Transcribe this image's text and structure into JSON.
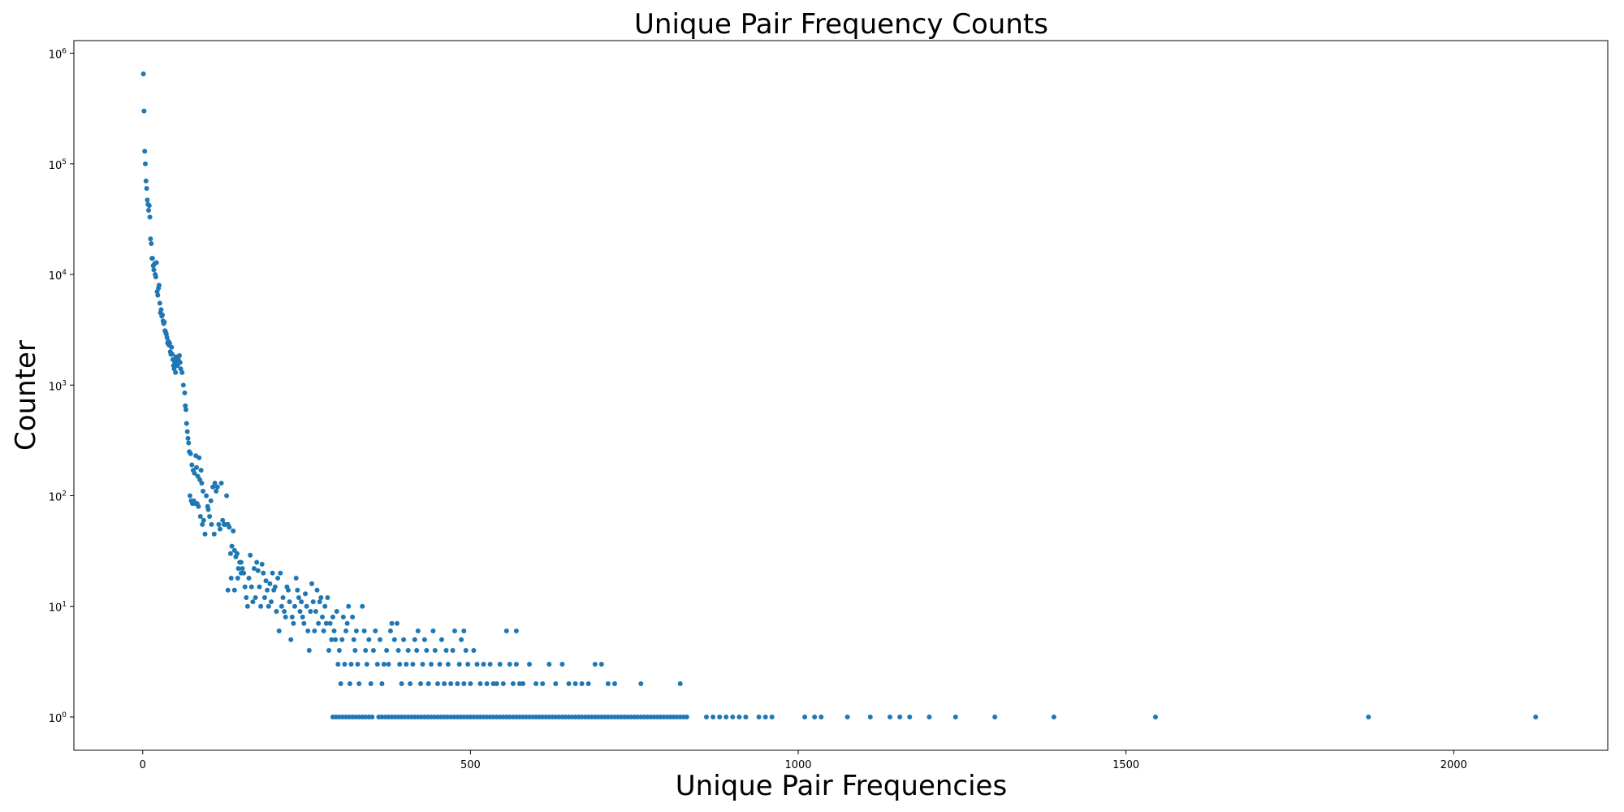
{
  "chart_data": {
    "type": "scatter",
    "title": "Unique Pair Frequency Counts",
    "xlabel": "Unique Pair Frequencies",
    "ylabel": "Counter",
    "xlim": [
      -105,
      2235
    ],
    "ylim": [
      0.5,
      1300000
    ],
    "yscale": "log",
    "xticks": [
      0,
      500,
      1000,
      1500,
      2000
    ],
    "yticks": [
      {
        "value": 1,
        "base": "10",
        "exp": "0"
      },
      {
        "value": 10,
        "base": "10",
        "exp": "1"
      },
      {
        "value": 100,
        "base": "10",
        "exp": "2"
      },
      {
        "value": 1000,
        "base": "10",
        "exp": "3"
      },
      {
        "value": 10000,
        "base": "10",
        "exp": "4"
      },
      {
        "value": 100000,
        "base": "10",
        "exp": "5"
      },
      {
        "value": 1000000,
        "base": "10",
        "exp": "6"
      }
    ],
    "grid": false,
    "marker_color": "#1f77b4",
    "points": [
      [
        1,
        650000
      ],
      [
        2,
        300000
      ],
      [
        3,
        130000
      ],
      [
        4,
        100000
      ],
      [
        5,
        70000
      ],
      [
        6,
        60000
      ],
      [
        7,
        47000
      ],
      [
        8,
        43000
      ],
      [
        9,
        38000
      ],
      [
        10,
        42000
      ],
      [
        11,
        33000
      ],
      [
        12,
        21000
      ],
      [
        13,
        19000
      ],
      [
        14,
        14000
      ],
      [
        15,
        14000
      ],
      [
        16,
        12000
      ],
      [
        17,
        11000
      ],
      [
        18,
        12500
      ],
      [
        19,
        10000
      ],
      [
        20,
        9500
      ],
      [
        21,
        12800
      ],
      [
        22,
        7000
      ],
      [
        23,
        6500
      ],
      [
        24,
        7500
      ],
      [
        25,
        8000
      ],
      [
        26,
        5500
      ],
      [
        27,
        4500
      ],
      [
        28,
        4800
      ],
      [
        29,
        4200
      ],
      [
        30,
        4300
      ],
      [
        31,
        3800
      ],
      [
        32,
        3600
      ],
      [
        33,
        3700
      ],
      [
        34,
        3100
      ],
      [
        35,
        3000
      ],
      [
        36,
        2900
      ],
      [
        37,
        2700
      ],
      [
        38,
        2400
      ],
      [
        39,
        2500
      ],
      [
        40,
        2300
      ],
      [
        41,
        2400
      ],
      [
        42,
        2000
      ],
      [
        43,
        1900
      ],
      [
        44,
        2200
      ],
      [
        45,
        1900
      ],
      [
        46,
        1700
      ],
      [
        47,
        1500
      ],
      [
        48,
        1400
      ],
      [
        49,
        1600
      ],
      [
        50,
        1300
      ],
      [
        51,
        1800
      ],
      [
        52,
        1700
      ],
      [
        53,
        1500
      ],
      [
        54,
        1750
      ],
      [
        55,
        1650
      ],
      [
        56,
        1850
      ],
      [
        57,
        1600
      ],
      [
        58,
        1400
      ],
      [
        60,
        1300
      ],
      [
        62,
        1000
      ],
      [
        64,
        850
      ],
      [
        65,
        650
      ],
      [
        66,
        600
      ],
      [
        67,
        450
      ],
      [
        68,
        380
      ],
      [
        69,
        330
      ],
      [
        70,
        300
      ],
      [
        71,
        250
      ],
      [
        73,
        240
      ],
      [
        75,
        190
      ],
      [
        77,
        170
      ],
      [
        79,
        160
      ],
      [
        81,
        230
      ],
      [
        82,
        180
      ],
      [
        84,
        150
      ],
      [
        86,
        220
      ],
      [
        87,
        140
      ],
      [
        89,
        170
      ],
      [
        90,
        130
      ],
      [
        92,
        110
      ],
      [
        72,
        100
      ],
      [
        74,
        90
      ],
      [
        76,
        85
      ],
      [
        78,
        90
      ],
      [
        80,
        85
      ],
      [
        83,
        85
      ],
      [
        85,
        80
      ],
      [
        88,
        65
      ],
      [
        91,
        55
      ],
      [
        93,
        60
      ],
      [
        95,
        45
      ],
      [
        97,
        100
      ],
      [
        99,
        80
      ],
      [
        100,
        75
      ],
      [
        102,
        65
      ],
      [
        104,
        90
      ],
      [
        105,
        55
      ],
      [
        107,
        120
      ],
      [
        109,
        45
      ],
      [
        110,
        130
      ],
      [
        112,
        110
      ],
      [
        114,
        120
      ],
      [
        116,
        55
      ],
      [
        118,
        50
      ],
      [
        120,
        130
      ],
      [
        122,
        60
      ],
      [
        124,
        55
      ],
      [
        126,
        55
      ],
      [
        128,
        100
      ],
      [
        130,
        55
      ],
      [
        132,
        52
      ],
      [
        134,
        30
      ],
      [
        136,
        35
      ],
      [
        138,
        48
      ],
      [
        140,
        32
      ],
      [
        142,
        28
      ],
      [
        144,
        30
      ],
      [
        146,
        22
      ],
      [
        148,
        25
      ],
      [
        150,
        20
      ],
      [
        130,
        14
      ],
      [
        135,
        18
      ],
      [
        140,
        14
      ],
      [
        145,
        18
      ],
      [
        150,
        25
      ],
      [
        152,
        22
      ],
      [
        154,
        20
      ],
      [
        156,
        15
      ],
      [
        158,
        12
      ],
      [
        160,
        10
      ],
      [
        162,
        18
      ],
      [
        164,
        29
      ],
      [
        166,
        15
      ],
      [
        168,
        11
      ],
      [
        170,
        22
      ],
      [
        172,
        12
      ],
      [
        174,
        25
      ],
      [
        176,
        21
      ],
      [
        178,
        15
      ],
      [
        180,
        10
      ],
      [
        182,
        24
      ],
      [
        184,
        20
      ],
      [
        186,
        12
      ],
      [
        188,
        17
      ],
      [
        190,
        14
      ],
      [
        192,
        10
      ],
      [
        194,
        16
      ],
      [
        196,
        11
      ],
      [
        198,
        20
      ],
      [
        200,
        14
      ],
      [
        202,
        15
      ],
      [
        204,
        9
      ],
      [
        206,
        18
      ],
      [
        208,
        6
      ],
      [
        210,
        20
      ],
      [
        212,
        10
      ],
      [
        214,
        12
      ],
      [
        216,
        9
      ],
      [
        218,
        8
      ],
      [
        220,
        15
      ],
      [
        222,
        14
      ],
      [
        224,
        11
      ],
      [
        226,
        5
      ],
      [
        228,
        8
      ],
      [
        230,
        7
      ],
      [
        232,
        10
      ],
      [
        234,
        18
      ],
      [
        236,
        14
      ],
      [
        238,
        12
      ],
      [
        240,
        9
      ],
      [
        242,
        11
      ],
      [
        244,
        8
      ],
      [
        246,
        7
      ],
      [
        248,
        13
      ],
      [
        250,
        10
      ],
      [
        252,
        6
      ],
      [
        254,
        4
      ],
      [
        256,
        9
      ],
      [
        258,
        16
      ],
      [
        260,
        11
      ],
      [
        262,
        6
      ],
      [
        264,
        9
      ],
      [
        266,
        14
      ],
      [
        268,
        7
      ],
      [
        270,
        11
      ],
      [
        272,
        12
      ],
      [
        274,
        8
      ],
      [
        276,
        6
      ],
      [
        278,
        10
      ],
      [
        280,
        7
      ],
      [
        282,
        12
      ],
      [
        284,
        4
      ],
      [
        286,
        7
      ],
      [
        288,
        5
      ],
      [
        290,
        8
      ],
      [
        292,
        6
      ],
      [
        294,
        5
      ],
      [
        296,
        9
      ],
      [
        298,
        3
      ],
      [
        300,
        4
      ],
      [
        302,
        2
      ],
      [
        304,
        5
      ],
      [
        306,
        8
      ],
      [
        308,
        3
      ],
      [
        310,
        6
      ],
      [
        312,
        7
      ],
      [
        314,
        10
      ],
      [
        316,
        2
      ],
      [
        318,
        3
      ],
      [
        320,
        8
      ],
      [
        322,
        5
      ],
      [
        324,
        4
      ],
      [
        326,
        6
      ],
      [
        328,
        3
      ],
      [
        330,
        2
      ],
      [
        335,
        10
      ],
      [
        338,
        6
      ],
      [
        340,
        4
      ],
      [
        342,
        3
      ],
      [
        345,
        5
      ],
      [
        348,
        2
      ],
      [
        352,
        4
      ],
      [
        355,
        6
      ],
      [
        358,
        3
      ],
      [
        362,
        5
      ],
      [
        365,
        2
      ],
      [
        368,
        3
      ],
      [
        372,
        4
      ],
      [
        375,
        3
      ],
      [
        378,
        6
      ],
      [
        380,
        7
      ],
      [
        384,
        5
      ],
      [
        388,
        7
      ],
      [
        390,
        4
      ],
      [
        392,
        3
      ],
      [
        395,
        2
      ],
      [
        398,
        5
      ],
      [
        402,
        3
      ],
      [
        405,
        4
      ],
      [
        408,
        2
      ],
      [
        412,
        3
      ],
      [
        415,
        5
      ],
      [
        418,
        4
      ],
      [
        420,
        6
      ],
      [
        424,
        2
      ],
      [
        427,
        3
      ],
      [
        430,
        5
      ],
      [
        433,
        4
      ],
      [
        436,
        2
      ],
      [
        440,
        3
      ],
      [
        443,
        6
      ],
      [
        446,
        4
      ],
      [
        450,
        2
      ],
      [
        453,
        3
      ],
      [
        456,
        5
      ],
      [
        460,
        2
      ],
      [
        463,
        4
      ],
      [
        466,
        3
      ],
      [
        470,
        2
      ],
      [
        473,
        4
      ],
      [
        476,
        6
      ],
      [
        480,
        2
      ],
      [
        483,
        3
      ],
      [
        486,
        5
      ],
      [
        490,
        2
      ],
      [
        493,
        4
      ],
      [
        496,
        3
      ],
      [
        500,
        2
      ],
      [
        505,
        4
      ],
      [
        510,
        3
      ],
      [
        515,
        2
      ],
      [
        520,
        3
      ],
      [
        525,
        2
      ],
      [
        530,
        3
      ],
      [
        535,
        2
      ],
      [
        540,
        2
      ],
      [
        545,
        3
      ],
      [
        550,
        2
      ],
      [
        555,
        6
      ],
      [
        560,
        3
      ],
      [
        565,
        2
      ],
      [
        570,
        3
      ],
      [
        575,
        2
      ],
      [
        580,
        2
      ],
      [
        590,
        3
      ],
      [
        600,
        2
      ],
      [
        610,
        2
      ],
      [
        620,
        3
      ],
      [
        630,
        2
      ],
      [
        640,
        3
      ],
      [
        650,
        2
      ],
      [
        660,
        2
      ],
      [
        670,
        2
      ],
      [
        680,
        2
      ],
      [
        690,
        3
      ],
      [
        700,
        3
      ],
      [
        710,
        2
      ],
      [
        720,
        2
      ],
      [
        760,
        2
      ],
      [
        820,
        2
      ],
      [
        490,
        6
      ],
      [
        570,
        6
      ],
      [
        290,
        1
      ],
      [
        295,
        1
      ],
      [
        300,
        1
      ],
      [
        305,
        1
      ],
      [
        310,
        1
      ],
      [
        315,
        1
      ],
      [
        320,
        1
      ],
      [
        325,
        1
      ],
      [
        330,
        1
      ],
      [
        335,
        1
      ],
      [
        340,
        1
      ],
      [
        345,
        1
      ],
      [
        350,
        1
      ],
      [
        360,
        1
      ],
      [
        365,
        1
      ],
      [
        370,
        1
      ],
      [
        375,
        1
      ],
      [
        380,
        1
      ],
      [
        385,
        1
      ],
      [
        390,
        1
      ],
      [
        395,
        1
      ],
      [
        400,
        1
      ],
      [
        405,
        1
      ],
      [
        410,
        1
      ],
      [
        415,
        1
      ],
      [
        420,
        1
      ],
      [
        425,
        1
      ],
      [
        430,
        1
      ],
      [
        435,
        1
      ],
      [
        440,
        1
      ],
      [
        445,
        1
      ],
      [
        450,
        1
      ],
      [
        455,
        1
      ],
      [
        460,
        1
      ],
      [
        465,
        1
      ],
      [
        470,
        1
      ],
      [
        475,
        1
      ],
      [
        480,
        1
      ],
      [
        485,
        1
      ],
      [
        490,
        1
      ],
      [
        495,
        1
      ],
      [
        500,
        1
      ],
      [
        505,
        1
      ],
      [
        510,
        1
      ],
      [
        515,
        1
      ],
      [
        520,
        1
      ],
      [
        525,
        1
      ],
      [
        530,
        1
      ],
      [
        535,
        1
      ],
      [
        540,
        1
      ],
      [
        545,
        1
      ],
      [
        550,
        1
      ],
      [
        555,
        1
      ],
      [
        560,
        1
      ],
      [
        565,
        1
      ],
      [
        570,
        1
      ],
      [
        575,
        1
      ],
      [
        580,
        1
      ],
      [
        585,
        1
      ],
      [
        590,
        1
      ],
      [
        595,
        1
      ],
      [
        600,
        1
      ],
      [
        605,
        1
      ],
      [
        610,
        1
      ],
      [
        615,
        1
      ],
      [
        620,
        1
      ],
      [
        625,
        1
      ],
      [
        630,
        1
      ],
      [
        635,
        1
      ],
      [
        640,
        1
      ],
      [
        645,
        1
      ],
      [
        650,
        1
      ],
      [
        655,
        1
      ],
      [
        660,
        1
      ],
      [
        665,
        1
      ],
      [
        670,
        1
      ],
      [
        675,
        1
      ],
      [
        680,
        1
      ],
      [
        685,
        1
      ],
      [
        690,
        1
      ],
      [
        695,
        1
      ],
      [
        700,
        1
      ],
      [
        705,
        1
      ],
      [
        710,
        1
      ],
      [
        715,
        1
      ],
      [
        720,
        1
      ],
      [
        725,
        1
      ],
      [
        730,
        1
      ],
      [
        735,
        1
      ],
      [
        740,
        1
      ],
      [
        745,
        1
      ],
      [
        750,
        1
      ],
      [
        755,
        1
      ],
      [
        760,
        1
      ],
      [
        765,
        1
      ],
      [
        770,
        1
      ],
      [
        775,
        1
      ],
      [
        780,
        1
      ],
      [
        785,
        1
      ],
      [
        790,
        1
      ],
      [
        795,
        1
      ],
      [
        800,
        1
      ],
      [
        805,
        1
      ],
      [
        810,
        1
      ],
      [
        815,
        1
      ],
      [
        820,
        1
      ],
      [
        825,
        1
      ],
      [
        830,
        1
      ],
      [
        860,
        1
      ],
      [
        870,
        1
      ],
      [
        880,
        1
      ],
      [
        890,
        1
      ],
      [
        900,
        1
      ],
      [
        910,
        1
      ],
      [
        920,
        1
      ],
      [
        940,
        1
      ],
      [
        950,
        1
      ],
      [
        960,
        1
      ],
      [
        1010,
        1
      ],
      [
        1025,
        1
      ],
      [
        1035,
        1
      ],
      [
        1075,
        1
      ],
      [
        1110,
        1
      ],
      [
        1140,
        1
      ],
      [
        1155,
        1
      ],
      [
        1170,
        1
      ],
      [
        1200,
        1
      ],
      [
        1240,
        1
      ],
      [
        1300,
        1
      ],
      [
        1390,
        1
      ],
      [
        1545,
        1
      ],
      [
        1870,
        1
      ],
      [
        2125,
        1
      ]
    ]
  }
}
